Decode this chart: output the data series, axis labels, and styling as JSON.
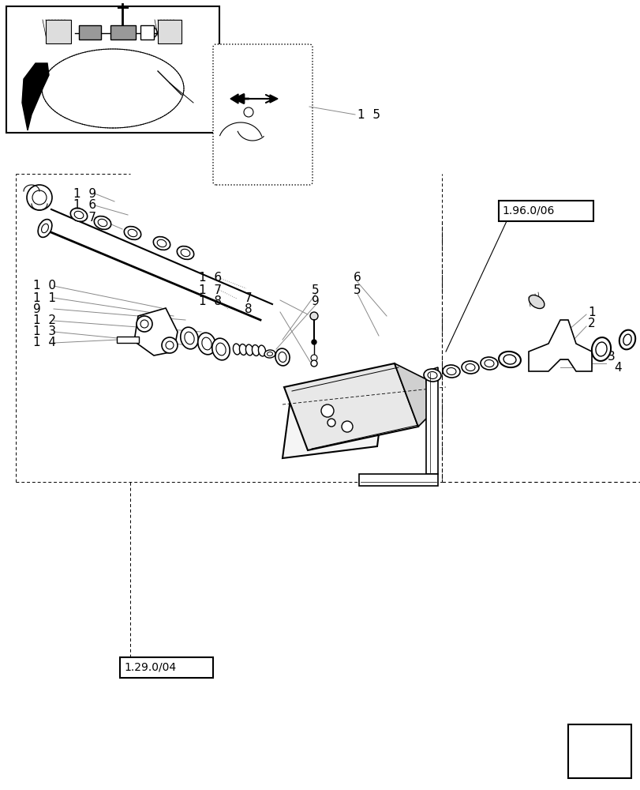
{
  "bg_color": "#ffffff",
  "lc": "#000000",
  "gray": "#888888",
  "ref_box_1": "1.96.0/06",
  "ref_box_2": "1.29.0/04",
  "label_15": "1  5",
  "fs": 11,
  "fs_small": 9,
  "fs_ref": 10
}
